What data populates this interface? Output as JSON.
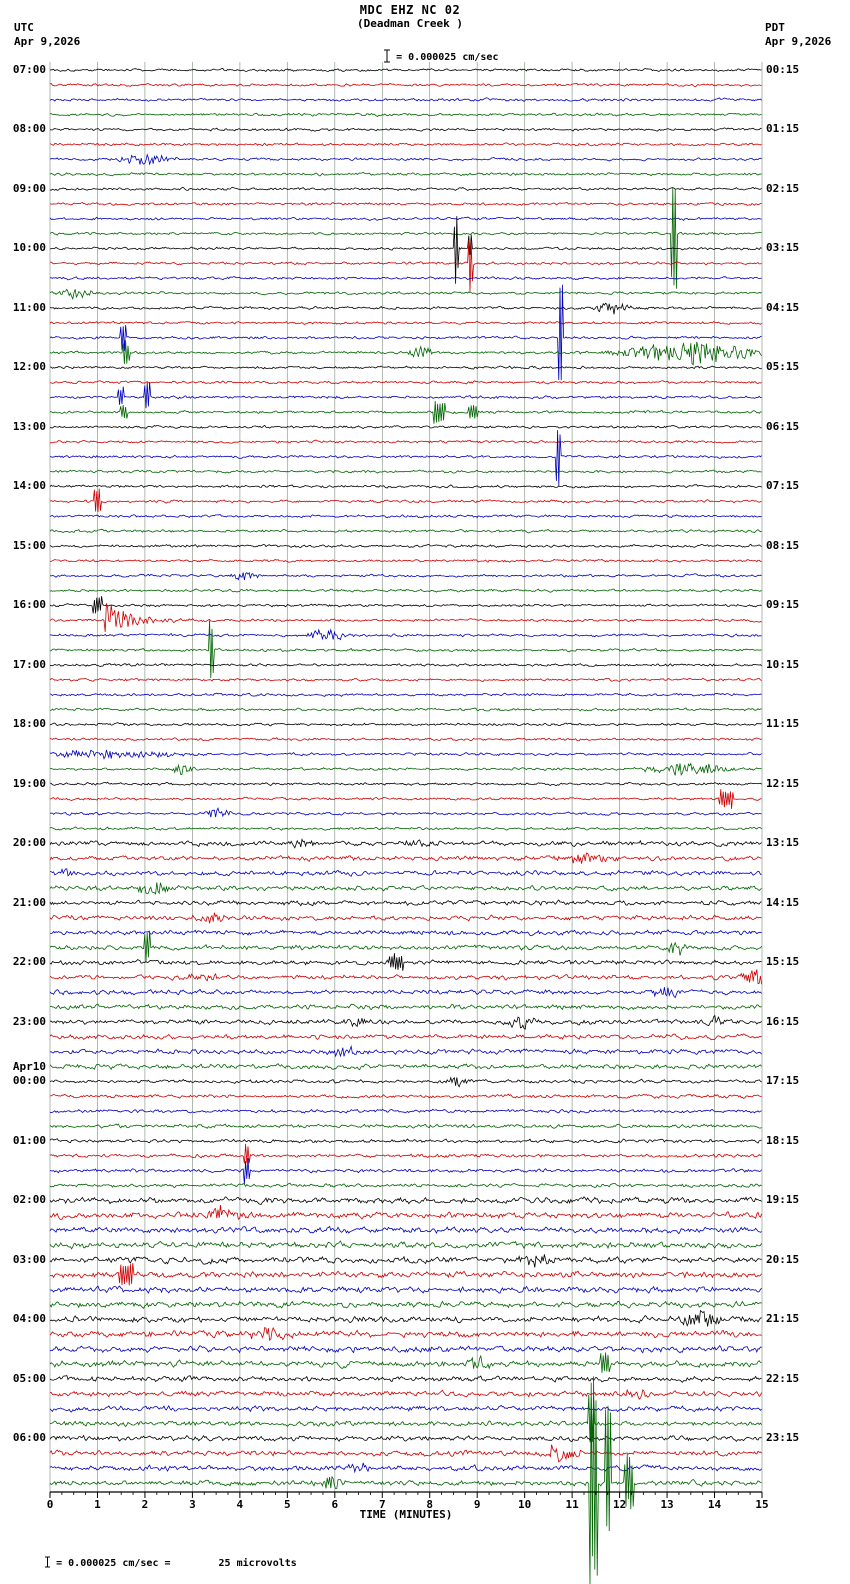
{
  "header": {
    "title": "MDC EHZ NC 02",
    "subtitle": "(Deadman Creek )",
    "scale_note": "= 0.000025 cm/sec",
    "left_tz": "UTC",
    "left_date": "Apr 9,2026",
    "right_tz": "PDT",
    "right_date": "Apr 9,2026"
  },
  "footer": {
    "scale_note": "= 0.000025 cm/sec =",
    "scale_value": "25 microvolts"
  },
  "chart_data": {
    "type": "line",
    "kind": "helicorder-seismogram",
    "station": "MDC EHZ NC 02",
    "station_location": "Deadman Creek",
    "title": "MDC EHZ NC 02",
    "xlabel": "TIME (MINUTES)",
    "x_range": [
      0,
      15
    ],
    "x_ticks": [
      "0",
      "1",
      "2",
      "3",
      "4",
      "5",
      "6",
      "7",
      "8",
      "9",
      "10",
      "11",
      "12",
      "13",
      "14",
      "15"
    ],
    "rows": 96,
    "minutes_per_row": 15,
    "grid": true,
    "grid_color": "#8f9b8f",
    "trace_colors": {
      "black": "#000000",
      "red": "#cc0000",
      "blue": "#0000bb",
      "green": "#006400"
    },
    "color_cycle": [
      "black",
      "red",
      "blue",
      "green"
    ],
    "left_labels": [
      "07:00",
      "08:00",
      "09:00",
      "10:00",
      "11:00",
      "12:00",
      "13:00",
      "14:00",
      "15:00",
      "16:00",
      "17:00",
      "18:00",
      "19:00",
      "20:00",
      "21:00",
      "22:00",
      "23:00",
      "00:00",
      "01:00",
      "02:00",
      "03:00",
      "04:00",
      "05:00",
      "06:00"
    ],
    "left_date_break": {
      "index": 17,
      "label": "Apr10"
    },
    "right_labels": [
      "00:15",
      "01:15",
      "02:15",
      "03:15",
      "04:15",
      "05:15",
      "06:15",
      "07:15",
      "08:15",
      "09:15",
      "10:15",
      "11:15",
      "12:15",
      "13:15",
      "14:15",
      "15:15",
      "16:15",
      "17:15",
      "18:15",
      "19:15",
      "20:15",
      "21:15",
      "22:15",
      "23:15"
    ],
    "noise_profile": [
      {
        "from": 0,
        "to": 51,
        "amp": 1.15
      },
      {
        "from": 52,
        "to": 67,
        "amp": 2.0
      },
      {
        "from": 68,
        "to": 75,
        "amp": 1.5
      },
      {
        "from": 76,
        "to": 87,
        "amp": 2.6
      },
      {
        "from": 88,
        "to": 95,
        "amp": 2.2
      }
    ],
    "events": [
      {
        "row": 6,
        "minute": 2.0,
        "amp": 6,
        "dur": 0.5,
        "type": "burst"
      },
      {
        "row": 11,
        "minute": 13.15,
        "amp": 50,
        "dur": 0.06,
        "type": "spike"
      },
      {
        "row": 12,
        "minute": 8.55,
        "amp": 28,
        "dur": 0.05,
        "type": "spike"
      },
      {
        "row": 12,
        "minute": 8.85,
        "amp": 10,
        "dur": 0.04,
        "type": "spike"
      },
      {
        "row": 13,
        "minute": 8.85,
        "amp": 22,
        "dur": 0.05,
        "type": "spike"
      },
      {
        "row": 15,
        "minute": 0.55,
        "amp": 6,
        "dur": 0.3,
        "type": "burst"
      },
      {
        "row": 16,
        "minute": 11.85,
        "amp": 6,
        "dur": 0.35,
        "type": "burst"
      },
      {
        "row": 18,
        "minute": 1.55,
        "amp": 12,
        "dur": 0.06,
        "type": "spike"
      },
      {
        "row": 18,
        "minute": 10.75,
        "amp": 55,
        "dur": 0.05,
        "type": "spike"
      },
      {
        "row": 19,
        "minute": 1.6,
        "amp": 10,
        "dur": 0.07,
        "type": "spike"
      },
      {
        "row": 19,
        "minute": 7.8,
        "amp": 7,
        "dur": 0.2,
        "type": "burst"
      },
      {
        "row": 19,
        "minute": 13.5,
        "amp": 11,
        "dur": 1.3,
        "type": "burst"
      },
      {
        "row": 22,
        "minute": 1.5,
        "amp": 8,
        "dur": 0.06,
        "type": "spike"
      },
      {
        "row": 22,
        "minute": 2.05,
        "amp": 12,
        "dur": 0.06,
        "type": "spike"
      },
      {
        "row": 23,
        "minute": 1.55,
        "amp": 7,
        "dur": 0.08,
        "type": "spike"
      },
      {
        "row": 23,
        "minute": 8.2,
        "amp": 9,
        "dur": 0.12,
        "type": "spike"
      },
      {
        "row": 23,
        "minute": 8.9,
        "amp": 6,
        "dur": 0.1,
        "type": "spike"
      },
      {
        "row": 26,
        "minute": 10.7,
        "amp": 26,
        "dur": 0.05,
        "type": "spike"
      },
      {
        "row": 29,
        "minute": 1.0,
        "amp": 11,
        "dur": 0.08,
        "type": "spike"
      },
      {
        "row": 34,
        "minute": 4.1,
        "amp": 5,
        "dur": 0.25,
        "type": "burst"
      },
      {
        "row": 36,
        "minute": 1.0,
        "amp": 7,
        "dur": 0.1,
        "type": "spike"
      },
      {
        "row": 37,
        "minute": 1.15,
        "amp": 22,
        "dur": 0.5,
        "type": "quake"
      },
      {
        "row": 38,
        "minute": 5.85,
        "amp": 6,
        "dur": 0.4,
        "type": "burst"
      },
      {
        "row": 39,
        "minute": 3.4,
        "amp": 24,
        "dur": 0.06,
        "type": "spike"
      },
      {
        "row": 46,
        "minute": 1.2,
        "amp": 4,
        "dur": 1.5,
        "type": "burst"
      },
      {
        "row": 47,
        "minute": 2.8,
        "amp": 5,
        "dur": 0.2,
        "type": "burst"
      },
      {
        "row": 47,
        "minute": 13.5,
        "amp": 6,
        "dur": 0.8,
        "type": "burst"
      },
      {
        "row": 49,
        "minute": 14.25,
        "amp": 7,
        "dur": 0.15,
        "type": "spike"
      },
      {
        "row": 50,
        "minute": 3.5,
        "amp": 5,
        "dur": 0.25,
        "type": "burst"
      },
      {
        "row": 52,
        "minute": 5.3,
        "amp": 4,
        "dur": 0.3,
        "type": "burst"
      },
      {
        "row": 52,
        "minute": 7.7,
        "amp": 4,
        "dur": 0.3,
        "type": "burst"
      },
      {
        "row": 53,
        "minute": 11.3,
        "amp": 6,
        "dur": 0.5,
        "type": "burst"
      },
      {
        "row": 54,
        "minute": 0.3,
        "amp": 5,
        "dur": 0.2,
        "type": "burst"
      },
      {
        "row": 55,
        "minute": 2.2,
        "amp": 7,
        "dur": 0.35,
        "type": "burst"
      },
      {
        "row": 57,
        "minute": 3.4,
        "amp": 5,
        "dur": 0.3,
        "type": "burst"
      },
      {
        "row": 59,
        "minute": 2.05,
        "amp": 13,
        "dur": 0.07,
        "type": "spike"
      },
      {
        "row": 59,
        "minute": 13.2,
        "amp": 7,
        "dur": 0.2,
        "type": "burst"
      },
      {
        "row": 60,
        "minute": 7.3,
        "amp": 6,
        "dur": 0.15,
        "type": "spike"
      },
      {
        "row": 61,
        "minute": 3.3,
        "amp": 5,
        "dur": 0.3,
        "type": "burst"
      },
      {
        "row": 61,
        "minute": 14.85,
        "amp": 10,
        "dur": 0.25,
        "type": "burst"
      },
      {
        "row": 62,
        "minute": 13.0,
        "amp": 5,
        "dur": 0.3,
        "type": "burst"
      },
      {
        "row": 64,
        "minute": 6.4,
        "amp": 6,
        "dur": 0.2,
        "type": "burst"
      },
      {
        "row": 64,
        "minute": 9.9,
        "amp": 7,
        "dur": 0.25,
        "type": "burst"
      },
      {
        "row": 64,
        "minute": 14.0,
        "amp": 6,
        "dur": 0.2,
        "type": "burst"
      },
      {
        "row": 66,
        "minute": 6.2,
        "amp": 5,
        "dur": 0.3,
        "type": "burst"
      },
      {
        "row": 68,
        "minute": 8.6,
        "amp": 5,
        "dur": 0.25,
        "type": "burst"
      },
      {
        "row": 73,
        "minute": 4.15,
        "amp": 9,
        "dur": 0.07,
        "type": "spike"
      },
      {
        "row": 74,
        "minute": 4.15,
        "amp": 11,
        "dur": 0.07,
        "type": "spike"
      },
      {
        "row": 77,
        "minute": 3.6,
        "amp": 7,
        "dur": 0.4,
        "type": "burst"
      },
      {
        "row": 80,
        "minute": 10.3,
        "amp": 6,
        "dur": 0.4,
        "type": "burst"
      },
      {
        "row": 81,
        "minute": 1.6,
        "amp": 9,
        "dur": 0.15,
        "type": "spike"
      },
      {
        "row": 84,
        "minute": 13.7,
        "amp": 8,
        "dur": 0.5,
        "type": "burst"
      },
      {
        "row": 85,
        "minute": 4.6,
        "amp": 6,
        "dur": 0.35,
        "type": "burst"
      },
      {
        "row": 87,
        "minute": 9.0,
        "amp": 6,
        "dur": 0.25,
        "type": "burst"
      },
      {
        "row": 87,
        "minute": 11.7,
        "amp": 9,
        "dur": 0.1,
        "type": "spike"
      },
      {
        "row": 89,
        "minute": 12.3,
        "amp": 6,
        "dur": 0.3,
        "type": "burst"
      },
      {
        "row": 91,
        "minute": 11.4,
        "amp": 22,
        "dur": 0.07,
        "type": "spike"
      },
      {
        "row": 93,
        "minute": 10.7,
        "amp": 7,
        "dur": 0.4,
        "type": "burst"
      },
      {
        "row": 94,
        "minute": 6.5,
        "amp": 6,
        "dur": 0.2,
        "type": "burst"
      },
      {
        "row": 95,
        "minute": 5.9,
        "amp": 7,
        "dur": 0.3,
        "type": "burst"
      },
      {
        "row": 95,
        "minute": 11.45,
        "amp": 95,
        "dur": 0.08,
        "type": "spike"
      },
      {
        "row": 95,
        "minute": 11.75,
        "amp": 60,
        "dur": 0.06,
        "type": "spike"
      },
      {
        "row": 95,
        "minute": 12.2,
        "amp": 25,
        "dur": 0.1,
        "type": "spike"
      }
    ]
  }
}
